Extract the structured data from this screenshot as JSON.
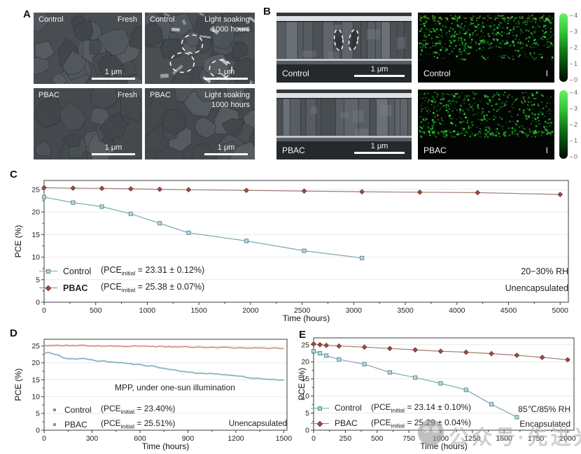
{
  "figure": {
    "panel_labels": {
      "A": "A",
      "B": "B",
      "C": "C",
      "D": "D",
      "E": "E"
    }
  },
  "panel_a": {
    "images": [
      {
        "sample": "Control",
        "condition1": "Fresh",
        "condition2": "",
        "scalebar": "1 μm"
      },
      {
        "sample": "Control",
        "condition1": "Light soaking",
        "condition2": "1000 hours",
        "scalebar": "1 μm"
      },
      {
        "sample": "PBAC",
        "condition1": "Fresh",
        "condition2": "",
        "scalebar": "1 μm"
      },
      {
        "sample": "PBAC",
        "condition1": "Light soaking",
        "condition2": "1000 hours",
        "scalebar": "1 μm"
      }
    ]
  },
  "panel_b": {
    "sem": [
      {
        "sample": "Control",
        "scalebar": "1 μm"
      },
      {
        "sample": "PBAC",
        "scalebar": "1 μm"
      }
    ],
    "eds": [
      {
        "sample": "Control",
        "element": "I"
      },
      {
        "sample": "PBAC",
        "element": "I"
      }
    ],
    "colorbar_ticks": [
      "4",
      "3",
      "2",
      "1",
      "0"
    ]
  },
  "panel_c": {
    "legend": [
      {
        "name": "Control",
        "pce_prefix": "(PCE",
        "pce_sub": "initial",
        "pce_rest": " = 23.31 ± 0.12%)"
      },
      {
        "name": "PBAC",
        "pce_prefix": "(PCE",
        "pce_sub": "initial",
        "pce_rest": " = 25.38 ± 0.07%)"
      }
    ],
    "annotation1": "20−30% RH",
    "annotation2": "Unencapsulated"
  },
  "panel_d": {
    "legend": [
      {
        "name": "Control",
        "pce_prefix": "(PCE",
        "pce_sub": "initial",
        "pce_rest": " = 23.40%)"
      },
      {
        "name": "PBAC",
        "pce_prefix": "(PCE",
        "pce_sub": "initial",
        "pce_rest": " = 25.51%)"
      }
    ],
    "annotation_mpp": "MPP, under one-sun illumination",
    "annotation2": "Unencapsulated"
  },
  "panel_e": {
    "legend": [
      {
        "name": "Control",
        "pce_prefix": "(PCE",
        "pce_sub": "initial",
        "pce_rest": " = 23.14 ± 0.10%)"
      },
      {
        "name": "PBAC",
        "pce_prefix": "(PCE",
        "pce_sub": "initial",
        "pce_rest": " = 25.29 ± 0.04%)"
      }
    ],
    "annotation1": "85℃/85% RH",
    "annotation2": "Encapsulated"
  },
  "watermark": {
    "text": "公众号·先进光伏"
  },
  "colors": {
    "control_line": "#7fa8b0",
    "control_fill": "#b9d7dc",
    "control_edge": "#4f8794",
    "pbac_line": "#9c7f76",
    "pbac_fill": "#a54b41",
    "pbac_edge": "#6f332c",
    "d_control_line": "#6f9dab",
    "d_control_halo": "#cfe4e9",
    "d_pbac_line": "#c87d6e",
    "d_pbac_halo": "#f0d4cc",
    "axis": "#3c3c3c",
    "grid": "#e9e9e9",
    "eds_green": "#2fbf3f"
  },
  "chart_data": [
    {
      "id": "chart-c",
      "type": "line",
      "title": "",
      "xlabel": "Time (hours)",
      "ylabel": "PCE (%)",
      "xlim": [
        0,
        5080
      ],
      "ylim": [
        0,
        27
      ],
      "grid": "horizontal",
      "legend_position": "lower-left",
      "x_ticks": [
        0,
        500,
        1000,
        1500,
        2000,
        2500,
        3000,
        3500,
        4000,
        4500,
        5000
      ],
      "y_ticks": [
        0,
        5,
        10,
        15,
        20,
        25
      ],
      "series": [
        {
          "name": "Control",
          "marker": "square",
          "line": "#7fa8b0",
          "fill": "#b9d7dc",
          "edge": "#4f8794",
          "x": [
            0,
            280,
            560,
            840,
            1120,
            1400,
            1960,
            2520,
            3080
          ],
          "y": [
            23.3,
            22.1,
            21.2,
            19.6,
            17.5,
            15.4,
            13.6,
            11.4,
            9.8
          ]
        },
        {
          "name": "PBAC",
          "marker": "diamond",
          "line": "#9c7f76",
          "fill": "#a54b41",
          "edge": "#6f332c",
          "x": [
            0,
            280,
            560,
            840,
            1120,
            1400,
            1960,
            2520,
            3080,
            3640,
            4200,
            5000
          ],
          "y": [
            25.4,
            25.3,
            25.25,
            25.15,
            25.05,
            24.95,
            24.8,
            24.65,
            24.5,
            24.4,
            24.3,
            23.9
          ]
        }
      ]
    },
    {
      "id": "chart-d",
      "type": "line",
      "title": "",
      "xlabel": "Time (hours)",
      "ylabel": "PCE (%)",
      "xlim": [
        0,
        1520
      ],
      "ylim": [
        0,
        27
      ],
      "grid": "horizontal",
      "legend_position": "lower-left",
      "x_ticks": [
        0,
        300,
        600,
        900,
        1200,
        1500
      ],
      "y_ticks": [
        0,
        5,
        10,
        15,
        20,
        25
      ],
      "series": [
        {
          "name": "Control",
          "marker": "none",
          "noisy": true,
          "line": "#6f9dab",
          "halo": "#cfe4e9",
          "x": [
            0,
            30,
            60,
            90,
            115,
            130,
            160,
            200,
            250,
            300,
            330,
            375,
            420,
            470,
            520,
            560,
            600,
            650,
            700,
            720,
            760,
            800,
            850,
            900,
            950,
            1000,
            1040,
            1090,
            1140,
            1190,
            1240,
            1290,
            1340,
            1390,
            1440,
            1500
          ],
          "y": [
            23.0,
            23.1,
            22.6,
            22.2,
            21.6,
            21.3,
            21.3,
            21.2,
            21.3,
            21.0,
            20.6,
            20.5,
            20.3,
            20.1,
            19.8,
            19.6,
            19.5,
            19.1,
            19.0,
            18.4,
            18.2,
            18.0,
            17.6,
            17.3,
            16.9,
            16.8,
            16.9,
            16.6,
            16.4,
            16.1,
            15.9,
            15.6,
            15.4,
            15.2,
            15.0,
            14.9
          ]
        },
        {
          "name": "PBAC",
          "marker": "none",
          "noisy": true,
          "line": "#c87d6e",
          "halo": "#f0d4cc",
          "x": [
            0,
            100,
            200,
            300,
            400,
            500,
            600,
            700,
            800,
            900,
            1000,
            1100,
            1200,
            1300,
            1400,
            1500
          ],
          "y": [
            25.1,
            25.15,
            25.2,
            25.1,
            25.0,
            24.95,
            24.9,
            24.85,
            24.8,
            24.7,
            24.6,
            24.55,
            24.5,
            24.4,
            24.35,
            24.3
          ]
        }
      ]
    },
    {
      "id": "chart-e",
      "type": "line",
      "title": "",
      "xlabel": "Time (hours)",
      "ylabel": "PCE (%)",
      "xlim": [
        0,
        2050
      ],
      "ylim": [
        0,
        27
      ],
      "grid": "horizontal",
      "legend_position": "lower-left",
      "x_ticks": [
        0,
        250,
        500,
        750,
        1000,
        1250,
        1500,
        1750,
        2000
      ],
      "y_ticks": [
        0,
        5,
        10,
        15,
        20,
        25
      ],
      "series": [
        {
          "name": "Control",
          "marker": "square",
          "line": "#7fa8b0",
          "fill": "#b9d7dc",
          "edge": "#4f8794",
          "x": [
            0,
            50,
            100,
            200,
            400,
            600,
            800,
            1000,
            1200,
            1400,
            1600
          ],
          "y": [
            23.1,
            22.5,
            21.8,
            20.7,
            19.3,
            16.9,
            15.4,
            13.7,
            11.8,
            7.6,
            3.8
          ]
        },
        {
          "name": "PBAC",
          "marker": "diamond",
          "line": "#9c7f76",
          "fill": "#a54b41",
          "edge": "#6f332c",
          "x": [
            0,
            50,
            100,
            200,
            400,
            600,
            800,
            1000,
            1200,
            1400,
            1600,
            1800,
            2000
          ],
          "y": [
            25.2,
            25.0,
            24.8,
            24.6,
            24.3,
            23.9,
            23.5,
            23.1,
            22.8,
            22.4,
            21.9,
            21.3,
            20.6
          ]
        }
      ]
    }
  ]
}
